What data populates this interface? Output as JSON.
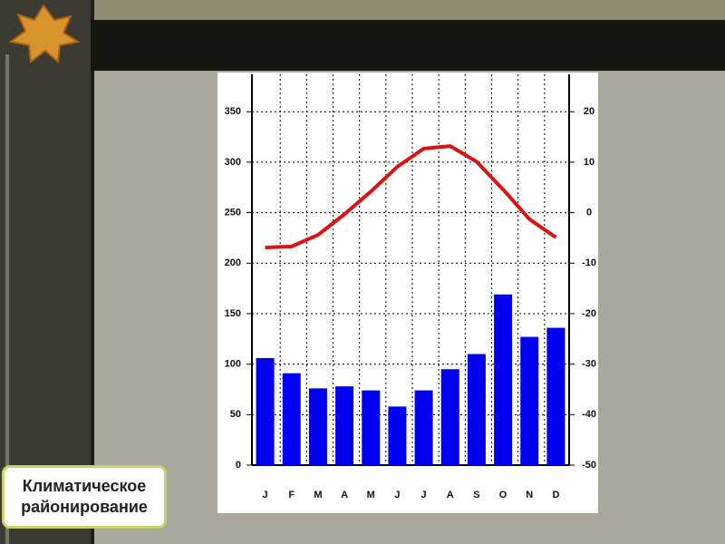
{
  "label": "Климатическое районирование",
  "chart_data": {
    "type": "combo",
    "categories": [
      "J",
      "F",
      "M",
      "A",
      "M",
      "J",
      "J",
      "A",
      "S",
      "O",
      "N",
      "D"
    ],
    "series": [
      {
        "type": "bar",
        "color": "#0000ee",
        "values": [
          106,
          91,
          76,
          78,
          74,
          58,
          74,
          95,
          110,
          169,
          127,
          136
        ]
      },
      {
        "type": "line",
        "axis": "y2",
        "color": "#dd1111",
        "values": [
          -6.9,
          -6.7,
          -4.4,
          -0.3,
          4.2,
          9.1,
          12.7,
          13.2,
          10.1,
          4.6,
          -1.3,
          -4.9
        ]
      }
    ],
    "ylim": [
      0,
      387
    ],
    "yticks": [
      0,
      50,
      100,
      150,
      200,
      250,
      300,
      350
    ],
    "y2lim": [
      -50,
      27.4
    ],
    "y2ticks": [
      -50,
      -40,
      -30,
      -20,
      -10,
      0,
      10,
      20
    ],
    "grid": true
  }
}
